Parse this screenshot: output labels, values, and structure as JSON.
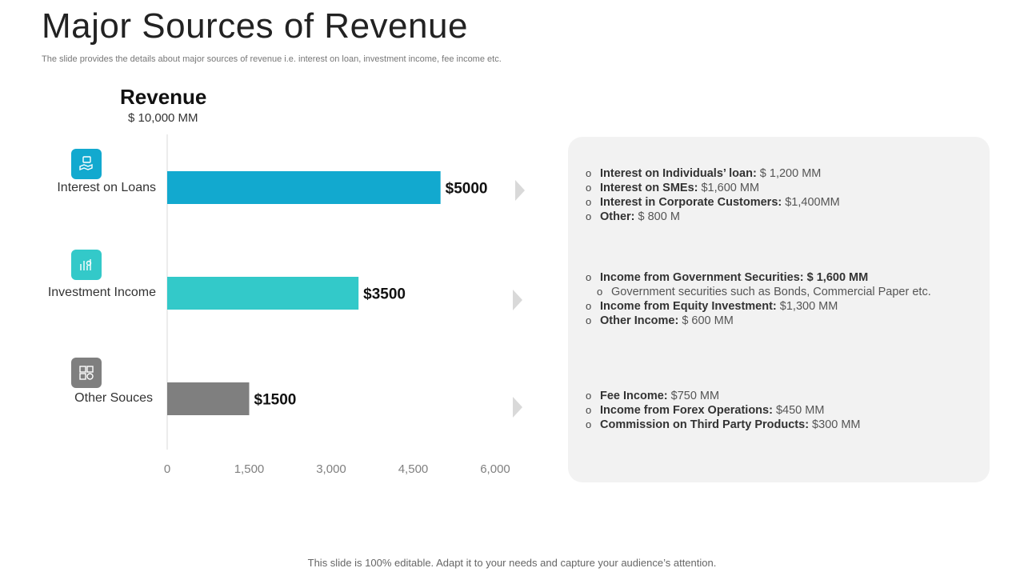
{
  "header": {
    "title": "Major Sources of Revenue",
    "subtitle": "The slide provides the details about major sources of revenue i.e. interest on loan, investment income, fee income etc."
  },
  "revenue_box": {
    "title": "Revenue",
    "total": "$ 10,000 MM"
  },
  "chart_data": {
    "type": "bar",
    "orientation": "horizontal",
    "categories": [
      "Interest on Loans",
      "Investment Income",
      "Other Souces"
    ],
    "values": [
      5000,
      3500,
      1500
    ],
    "data_labels": [
      "$5000",
      "$3500",
      "$1500"
    ],
    "colors": [
      "#12a9cf",
      "#33c9c9",
      "#7f7f7f"
    ],
    "xlim": [
      0,
      6000
    ],
    "xticks": [
      0,
      1500,
      3000,
      4500,
      6000
    ],
    "xtick_labels": [
      "0",
      "1,500",
      "3,000",
      "4,500",
      "6,000"
    ],
    "grid": false
  },
  "category_icons": [
    {
      "icon": "hand-money-icon",
      "color": "#12a9cf"
    },
    {
      "icon": "investment-growth-icon",
      "color": "#33c9c9"
    },
    {
      "icon": "other-income-icon",
      "color": "#7f7f7f"
    }
  ],
  "details": [
    {
      "items": [
        {
          "bold": "Interest on Individuals’ loan:",
          "text": " $ 1,200 MM",
          "sub": false
        },
        {
          "bold": "Interest on SMEs:",
          "text": " $1,600 MM",
          "sub": false
        },
        {
          "bold": "Interest in Corporate Customers:",
          "text": " $1,400MM",
          "sub": false
        },
        {
          "bold": "Other:",
          "text": " $ 800 M",
          "sub": false
        }
      ]
    },
    {
      "items": [
        {
          "bold": "Income from Government Securities: $ 1,600 MM",
          "text": "",
          "sub": false
        },
        {
          "bold": "",
          "text": "Government securities such as Bonds, Commercial Paper etc.",
          "sub": true
        },
        {
          "bold": "Income from Equity Investment:",
          "text": " $1,300 MM",
          "sub": false
        },
        {
          "bold": "Other Income:",
          "text": " $ 600 MM",
          "sub": false
        }
      ]
    },
    {
      "items": [
        {
          "bold": "Fee Income:",
          "text": " $750 MM",
          "sub": false
        },
        {
          "bold": "Income from Forex Operations:",
          "text": " $450 MM",
          "sub": false
        },
        {
          "bold": "Commission on Third Party Products:",
          "text": " $300 MM",
          "sub": false
        }
      ]
    }
  ],
  "bullet_marker": "o",
  "footer": "This slide is 100% editable. Adapt it to your needs and capture your audience’s attention."
}
